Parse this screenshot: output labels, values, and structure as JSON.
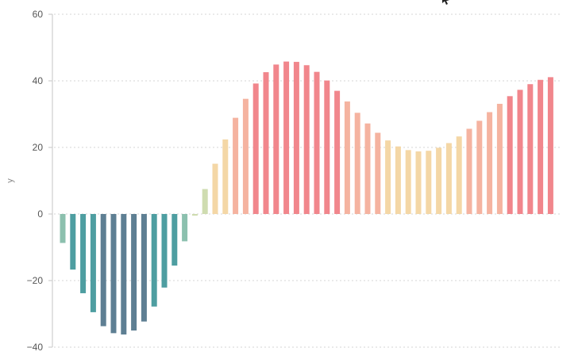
{
  "chart_data": {
    "type": "bar",
    "title": "",
    "xlabel": "",
    "ylabel": "y",
    "ylim": [
      -40,
      60
    ],
    "yticks": [
      -40,
      -20,
      0,
      20,
      40,
      60
    ],
    "ytick_labels": [
      "−40",
      "−20",
      "0",
      "20",
      "40",
      "60"
    ],
    "grid": true,
    "legend": "none",
    "colors": {
      "deep_negative": "#5e7f93",
      "mid_negative": "#4e9ea1",
      "light_negative": "#8cc0ae",
      "near_zero": "#cfdcb0",
      "low_positive": "#f4d7a6",
      "mid_positive": "#f5b3a0",
      "high_positive": "#f1868c",
      "gridline": "#d6d6d6",
      "axis": "#cfcfcf",
      "tick_text": "#555555"
    },
    "series": [
      {
        "values": [
          -8.7,
          -16.7,
          -23.8,
          -29.5,
          -33.7,
          -35.8,
          -36.2,
          -35.0,
          -32.3,
          -27.8,
          -22.1,
          -15.5,
          -8.2,
          -0.5,
          7.5,
          15.1,
          22.4,
          28.9,
          34.6,
          39.2,
          42.6,
          44.9,
          45.8,
          45.7,
          44.7,
          42.7,
          40.1,
          37.0,
          33.8,
          30.4,
          27.2,
          24.4,
          22.1,
          20.3,
          19.2,
          18.8,
          19.0,
          19.9,
          21.3,
          23.3,
          25.6,
          28.0,
          30.6,
          33.1,
          35.4,
          37.3,
          39.0,
          40.3,
          41.1
        ]
      }
    ]
  }
}
